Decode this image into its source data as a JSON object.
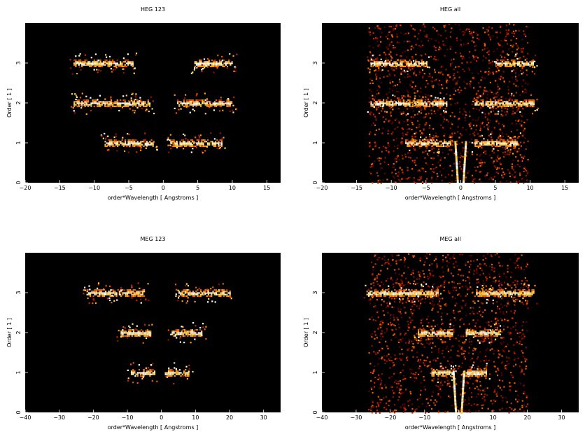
{
  "chart_data": [
    {
      "type": "heatmap",
      "title": "HEG 123",
      "xlabel": "order*Wavelength [ Angstroms ]",
      "ylabel": "Order [ 1 ]",
      "xlim": [
        -20,
        17
      ],
      "ylim": [
        0,
        4
      ],
      "x_ticks": [
        -20,
        -15,
        -10,
        -5,
        0,
        5,
        10,
        15
      ],
      "y_ticks": [
        0,
        1,
        2,
        3
      ],
      "background": "#000000",
      "bands": [
        {
          "order": 1,
          "x_ranges": [
            [
              -8.5,
              -1.5
            ],
            [
              1,
              8.5
            ]
          ]
        },
        {
          "order": 2,
          "x_ranges": [
            [
              -13,
              -2
            ],
            [
              2,
              10
            ]
          ]
        },
        {
          "order": 3,
          "x_ranges": [
            [
              -13,
              -4.5
            ],
            [
              4.5,
              10
            ]
          ]
        }
      ]
    },
    {
      "type": "heatmap",
      "title": "HEG all",
      "xlabel": "order*Wavelength [ Angstroms ]",
      "ylabel": "Order [ 1 ]",
      "xlim": [
        -20,
        17
      ],
      "ylim": [
        0,
        4
      ],
      "x_ticks": [
        -20,
        -15,
        -10,
        -5,
        0,
        5,
        10,
        15
      ],
      "y_ticks": [
        0,
        1,
        2,
        3
      ],
      "background": "#000000",
      "bands": [
        {
          "order": 1,
          "x_ranges": [
            [
              -8,
              -1.5
            ],
            [
              2,
              8
            ]
          ]
        },
        {
          "order": 2,
          "x_ranges": [
            [
              -13,
              -2
            ],
            [
              2,
              10.5
            ]
          ]
        },
        {
          "order": 3,
          "x_ranges": [
            [
              -13,
              -5
            ],
            [
              5,
              10.5
            ]
          ]
        }
      ]
    },
    {
      "type": "heatmap",
      "title": "MEG 123",
      "xlabel": "order*Wavelength [ Angstroms ]",
      "ylabel": "Order [ 1 ]",
      "xlim": [
        -40,
        35
      ],
      "ylim": [
        0,
        4
      ],
      "x_ticks": [
        -40,
        -30,
        -20,
        -10,
        0,
        10,
        20,
        30
      ],
      "y_ticks": [
        0,
        1,
        2,
        3
      ],
      "background": "#000000",
      "bands": [
        {
          "order": 1,
          "x_ranges": [
            [
              -9,
              -2
            ],
            [
              1,
              8
            ]
          ]
        },
        {
          "order": 2,
          "x_ranges": [
            [
              -12,
              -3
            ],
            [
              3,
              12
            ]
          ]
        },
        {
          "order": 3,
          "x_ranges": [
            [
              -22,
              -5
            ],
            [
              5,
              20
            ]
          ]
        }
      ]
    },
    {
      "type": "heatmap",
      "title": "MEG all",
      "xlabel": "order*Wavelength [ Angstroms ]",
      "ylabel": "Order [ 1 ]",
      "xlim": [
        -40,
        35
      ],
      "ylim": [
        0,
        4
      ],
      "x_ticks": [
        -40,
        -30,
        -20,
        -10,
        0,
        10,
        20,
        30
      ],
      "y_ticks": [
        0,
        1,
        2,
        3
      ],
      "background": "#000000",
      "bands": [
        {
          "order": 1,
          "x_ranges": [
            [
              -8,
              -1.5
            ],
            [
              1.5,
              8
            ]
          ]
        },
        {
          "order": 2,
          "x_ranges": [
            [
              -12,
              -2
            ],
            [
              2,
              12
            ]
          ]
        },
        {
          "order": 3,
          "x_ranges": [
            [
              -27,
              -6
            ],
            [
              5,
              22
            ]
          ]
        }
      ]
    }
  ]
}
